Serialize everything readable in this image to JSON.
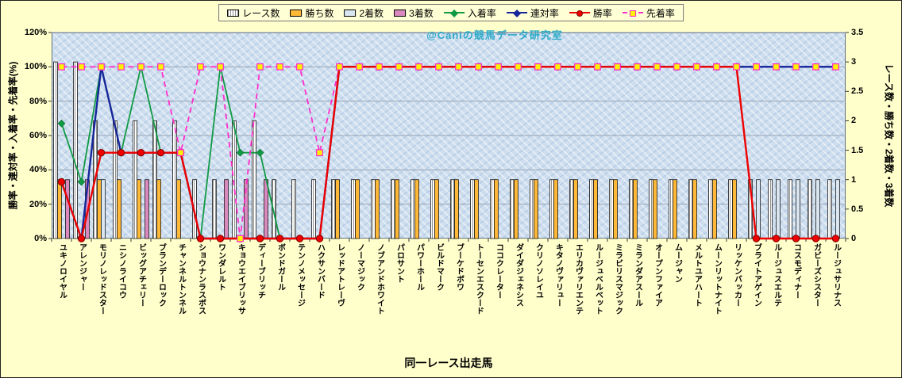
{
  "chart_data": {
    "type": "combo-bar-line",
    "watermark": "@Caniの競馬データ研究室",
    "x_title": "同一レース出走馬",
    "y_left_title": "勝率・連対率・入着率・先着率(%)",
    "y_right_title": "レース数・勝ち数・2着数・3着数",
    "y_left_ticks": [
      "0%",
      "20%",
      "40%",
      "60%",
      "80%",
      "100%",
      "120%"
    ],
    "y_right_ticks": [
      "0",
      "0.5",
      "1",
      "1.5",
      "2",
      "2.5",
      "3",
      "3.5"
    ],
    "y_left_range": [
      0,
      120
    ],
    "y_right_range": [
      0,
      3.5
    ],
    "grid": "horizontal",
    "legend_position": "top",
    "categories": [
      "ユキノロイヤル",
      "アレンジャー",
      "モリノレッドスター",
      "ニシノライコウ",
      "ビッグアチェリー",
      "ブランデーロック",
      "チャンネルトンネル",
      "ショウナンラスボス",
      "ワンダレルト",
      "キョウエイブリッサ",
      "ディーブリッチ",
      "ボンドガール",
      "テンノメッセージ",
      "ハクサンバード",
      "レッドアトレーヴ",
      "ノーマジック",
      "ノブアンドホワイト",
      "パロサント",
      "パワーホール",
      "ビルドマーク",
      "ブーケドボワ",
      "トーセンエスクード",
      "ココクレーター",
      "ダイダジェネシス",
      "クリノソレイユ",
      "キタノヴァリュー",
      "エリカヴァリエンテ",
      "ルージュベルベット",
      "ミラビリスマジック",
      "ミランダアスール",
      "オープンファイア",
      "ムージャン",
      "メルトユアハート",
      "ムーンリットナイト",
      "リッケンバッカー",
      "ブライトアゲイン",
      "ルージュスエルテ",
      "コスモディナー",
      "ガビーズシスター",
      "ルージュサリナス"
    ],
    "bar_series": [
      {
        "name": "レース数",
        "style": "hatch",
        "color": "#FFFFFF",
        "axis": "right",
        "values": [
          3,
          3,
          2,
          2,
          2,
          2,
          2,
          1,
          1,
          2,
          2,
          1,
          1,
          1,
          1,
          1,
          1,
          1,
          1,
          1,
          1,
          1,
          1,
          1,
          1,
          1,
          1,
          1,
          1,
          1,
          1,
          1,
          1,
          1,
          1,
          1,
          1,
          1,
          1,
          1
        ]
      },
      {
        "name": "勝ち数",
        "style": "solid",
        "color": "#FFB838",
        "axis": "right",
        "values": [
          1,
          0,
          1,
          1,
          1,
          1,
          1,
          0,
          0,
          0,
          0,
          0,
          0,
          0,
          1,
          1,
          1,
          1,
          1,
          1,
          1,
          1,
          1,
          1,
          1,
          1,
          1,
          1,
          1,
          1,
          1,
          1,
          1,
          1,
          1,
          0,
          0,
          0,
          0,
          0
        ]
      },
      {
        "name": "2着数",
        "style": "solid",
        "color": "#D9E6F2",
        "axis": "right",
        "values": [
          0,
          0,
          1,
          0,
          0,
          0,
          0,
          0,
          0,
          0,
          0,
          0,
          0,
          0,
          0,
          0,
          0,
          0,
          0,
          0,
          0,
          0,
          0,
          0,
          0,
          0,
          0,
          0,
          0,
          0,
          0,
          0,
          0,
          0,
          0,
          1,
          1,
          1,
          1,
          1
        ]
      },
      {
        "name": "3着数",
        "style": "solid",
        "color": "#D989BE",
        "axis": "right",
        "values": [
          1,
          1,
          0,
          0,
          1,
          0,
          0,
          0,
          1,
          1,
          1,
          0,
          0,
          0,
          0,
          0,
          0,
          0,
          0,
          0,
          0,
          0,
          0,
          0,
          0,
          0,
          0,
          0,
          0,
          0,
          0,
          0,
          0,
          0,
          0,
          0,
          0,
          0,
          0,
          0
        ]
      }
    ],
    "line_series": [
      {
        "name": "入着率",
        "color": "#109A44",
        "marker": "diamond",
        "dashed": false,
        "axis": "left",
        "values": [
          67,
          33,
          100,
          50,
          100,
          50,
          50,
          0,
          100,
          50,
          50,
          0,
          0,
          0,
          100,
          100,
          100,
          100,
          100,
          100,
          100,
          100,
          100,
          100,
          100,
          100,
          100,
          100,
          100,
          100,
          100,
          100,
          100,
          100,
          100,
          100,
          100,
          100,
          100,
          100
        ]
      },
      {
        "name": "連対率",
        "color": "#16269B",
        "marker": "none",
        "dashed": false,
        "axis": "left",
        "values": [
          33,
          0,
          100,
          50,
          50,
          50,
          50,
          0,
          0,
          0,
          0,
          0,
          0,
          0,
          100,
          100,
          100,
          100,
          100,
          100,
          100,
          100,
          100,
          100,
          100,
          100,
          100,
          100,
          100,
          100,
          100,
          100,
          100,
          100,
          100,
          100,
          100,
          100,
          100,
          100
        ]
      },
      {
        "name": "勝率",
        "color": "#EE0000",
        "marker": "circle",
        "dashed": false,
        "axis": "left",
        "values": [
          33,
          0,
          50,
          50,
          50,
          50,
          50,
          0,
          0,
          0,
          0,
          0,
          0,
          0,
          100,
          100,
          100,
          100,
          100,
          100,
          100,
          100,
          100,
          100,
          100,
          100,
          100,
          100,
          100,
          100,
          100,
          100,
          100,
          100,
          100,
          0,
          0,
          0,
          0,
          0
        ]
      },
      {
        "name": "先着率",
        "color": "#FF2ECC",
        "marker": "square",
        "marker_fill": "#FFF200",
        "dashed": true,
        "axis": "left",
        "values": [
          100,
          100,
          100,
          100,
          100,
          100,
          50,
          100,
          100,
          0,
          100,
          100,
          100,
          50,
          100,
          100,
          100,
          100,
          100,
          100,
          100,
          100,
          100,
          100,
          100,
          100,
          100,
          100,
          100,
          100,
          100,
          100,
          100,
          100,
          100,
          100,
          100,
          100,
          100,
          100
        ]
      }
    ]
  }
}
